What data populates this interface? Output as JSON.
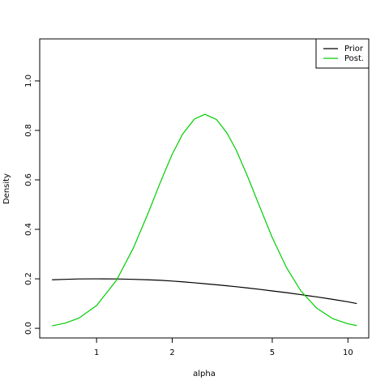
{
  "chart_data": {
    "type": "line",
    "x_label": "alpha",
    "y_label": "Density",
    "xlog": true,
    "x": [
      0.665,
      0.75,
      0.85,
      1,
      1.2,
      1.4,
      1.6,
      1.8,
      2,
      2.2,
      2.45,
      2.7,
      3,
      3.3,
      3.6,
      4,
      4.5,
      5,
      5.7,
      6.5,
      7.5,
      8.7,
      10,
      10.85
    ],
    "series": [
      {
        "name": "Prior",
        "color": "#000000",
        "values": [
          0.196,
          0.198,
          0.1995,
          0.2,
          0.1995,
          0.198,
          0.196,
          0.194,
          0.191,
          0.188,
          0.184,
          0.18,
          0.176,
          0.172,
          0.168,
          0.163,
          0.157,
          0.151,
          0.144,
          0.136,
          0.127,
          0.117,
          0.107,
          0.1
        ]
      },
      {
        "name": "Post.",
        "color": "#00cd00",
        "values": [
          0.01,
          0.021,
          0.041,
          0.092,
          0.194,
          0.324,
          0.463,
          0.594,
          0.704,
          0.785,
          0.846,
          0.865,
          0.844,
          0.79,
          0.719,
          0.611,
          0.481,
          0.367,
          0.245,
          0.151,
          0.082,
          0.039,
          0.018,
          0.011
        ]
      }
    ],
    "xlim": [
      0.594,
      12.1
    ],
    "xticks": [
      1,
      2,
      5,
      10
    ],
    "ylim": [
      -0.039,
      1.17
    ],
    "yticks": [
      {
        "value": 0,
        "label": "0.0"
      },
      0.2,
      0.4,
      0.6,
      0.8,
      {
        "value": 1,
        "label": "1.0"
      }
    ],
    "legend": "top-right"
  }
}
